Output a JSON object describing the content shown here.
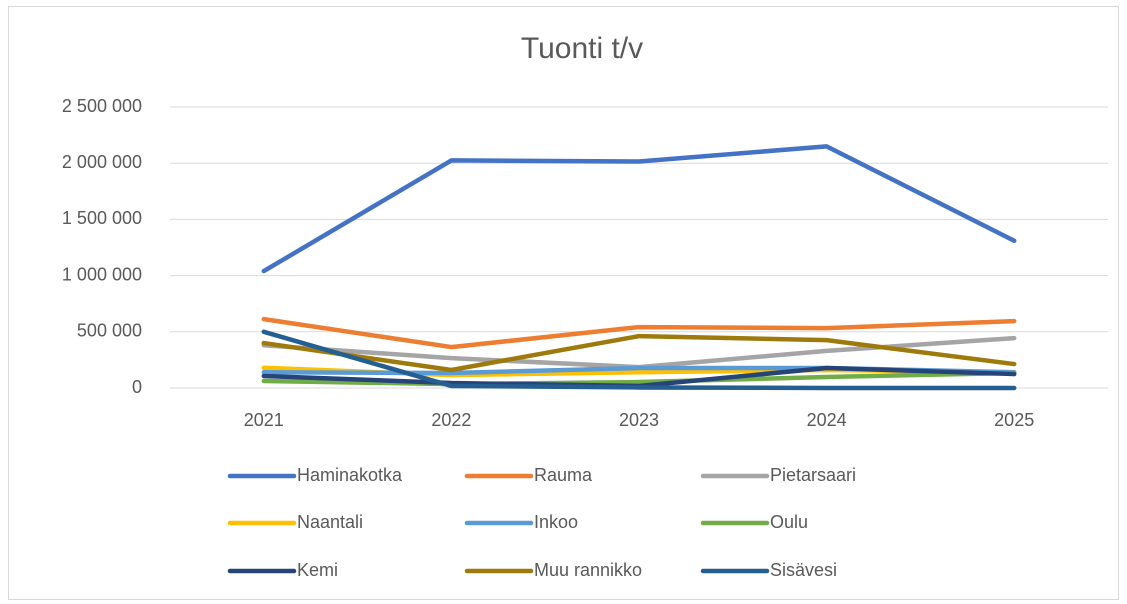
{
  "chart_data": {
    "type": "line",
    "title": "Tuonti t/v",
    "categories": [
      "2021",
      "2022",
      "2023",
      "2024",
      "2025"
    ],
    "series": [
      {
        "name": "Haminakotka",
        "color": "#4472c4",
        "values": [
          1040000,
          2025000,
          2015000,
          2150000,
          1310000
        ]
      },
      {
        "name": "Rauma",
        "color": "#ed7d31",
        "values": [
          613000,
          364000,
          542000,
          533000,
          595000
        ]
      },
      {
        "name": "Pietarsaari",
        "color": "#a5a5a5",
        "values": [
          380000,
          266000,
          186000,
          330000,
          444000
        ]
      },
      {
        "name": "Naantali",
        "color": "#ffc000",
        "values": [
          180000,
          115000,
          140000,
          160000,
          140000
        ]
      },
      {
        "name": "Inkoo",
        "color": "#5b9bd5",
        "values": [
          140000,
          133000,
          178000,
          178000,
          140000
        ]
      },
      {
        "name": "Oulu",
        "color": "#70ad47",
        "values": [
          62000,
          35000,
          53000,
          98000,
          133000
        ]
      },
      {
        "name": "Kemi",
        "color": "#264478",
        "values": [
          107000,
          44000,
          18000,
          178000,
          124000
        ]
      },
      {
        "name": "Muu rannikko",
        "color": "#9e7a0c",
        "values": [
          400000,
          160000,
          462000,
          426000,
          213000
        ]
      },
      {
        "name": "Sisävesi",
        "color": "#255e91",
        "values": [
          500000,
          18000,
          5000,
          0,
          0
        ]
      }
    ],
    "ylim": [
      0,
      2500000
    ],
    "yticks": [
      0,
      {
        "value": 500000,
        "label": "500 000"
      },
      {
        "value": 1000000,
        "label": "1 000 000"
      },
      {
        "value": 1500000,
        "label": "1 500 000"
      },
      {
        "value": 2000000,
        "label": "2 000 000"
      },
      {
        "value": 2500000,
        "label": "2 500 000"
      }
    ],
    "grid": true
  }
}
